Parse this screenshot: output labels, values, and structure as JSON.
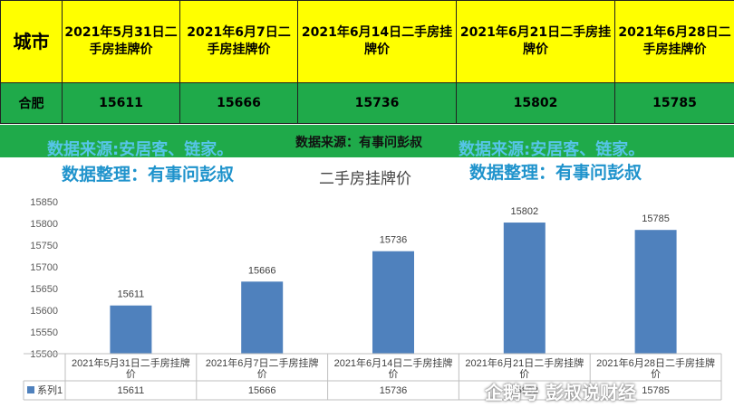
{
  "table": {
    "city_header": "城市",
    "date_headers": [
      "2021年5月31日二手房挂牌价",
      "2021年6月7日二手房挂牌价",
      "2021年6月14日二手房挂牌价",
      "2021年6月21日二手房挂牌价",
      "2021年6月28日二手房挂牌价"
    ],
    "row": {
      "city": "合肥",
      "values": [
        "15611",
        "15666",
        "15736",
        "15802",
        "15785"
      ]
    }
  },
  "source_note": "数据来源：有事问彭叔",
  "watermarks": {
    "source": "数据来源:安居客、链家。",
    "arranger": "数据整理：有事问彭叔"
  },
  "logo_text": "企鹅号 彭叔说财经",
  "chart_data": {
    "type": "bar",
    "title": "二手房挂牌价",
    "categories": [
      "2021年5月31日二手房挂牌价",
      "2021年6月7日二手房挂牌价",
      "2021年6月14日二手房挂牌价",
      "2021年6月21日二手房挂牌价",
      "2021年6月28日二手房挂牌价"
    ],
    "series": [
      {
        "name": "系列1",
        "values": [
          15611,
          15666,
          15736,
          15802,
          15785
        ],
        "color": "#4f81bd"
      }
    ],
    "ylim": [
      15500,
      15850
    ],
    "yticks": [
      15500,
      15550,
      15600,
      15650,
      15700,
      15750,
      15800,
      15850
    ],
    "grid": false,
    "data_labels": true,
    "data_table": true
  }
}
